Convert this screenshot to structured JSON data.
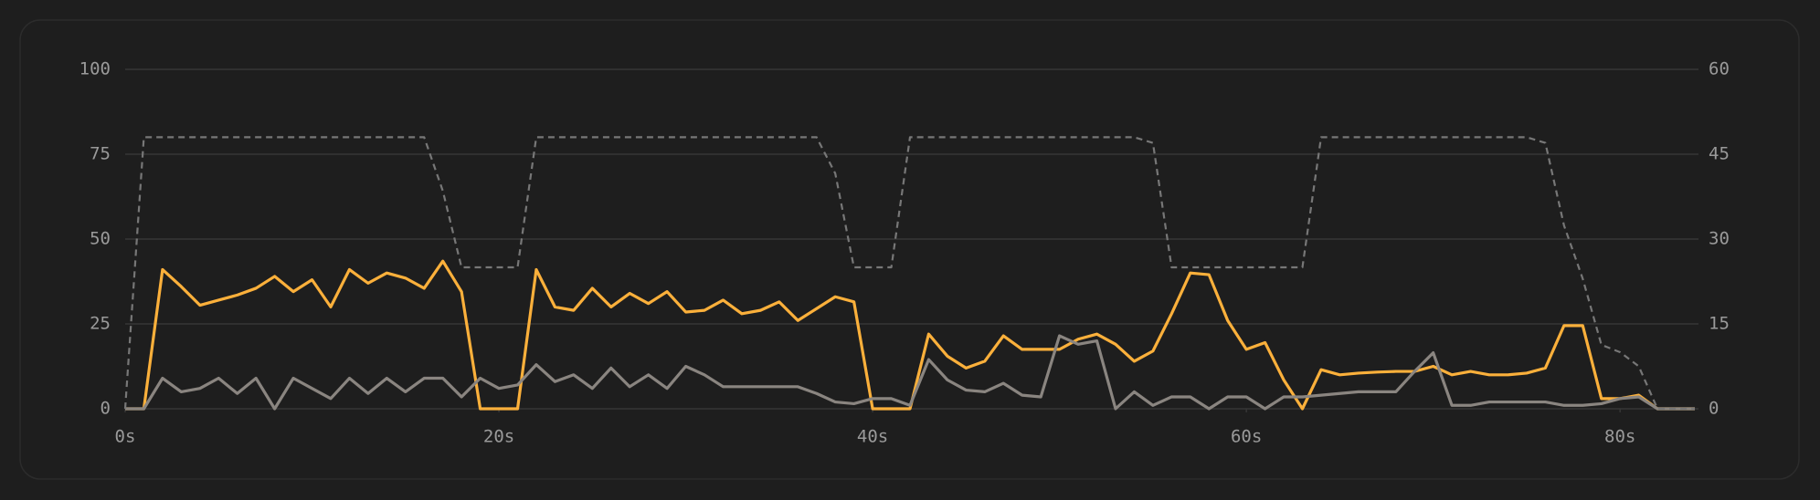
{
  "chart_data": {
    "type": "line",
    "x": [
      0,
      1,
      2,
      3,
      4,
      5,
      6,
      7,
      8,
      9,
      10,
      11,
      12,
      13,
      14,
      15,
      16,
      17,
      18,
      19,
      20,
      21,
      22,
      23,
      24,
      25,
      26,
      27,
      28,
      29,
      30,
      31,
      32,
      33,
      34,
      35,
      36,
      37,
      38,
      39,
      40,
      41,
      42,
      43,
      44,
      45,
      46,
      47,
      48,
      49,
      50,
      51,
      52,
      53,
      54,
      55,
      56,
      57,
      58,
      59,
      60,
      61,
      62,
      63,
      64,
      65,
      66,
      67,
      68,
      69,
      70,
      71,
      72,
      73,
      74,
      75,
      76,
      77,
      78,
      79,
      80,
      81,
      82,
      83,
      84
    ],
    "xlim": [
      0,
      84
    ],
    "xticks": [
      {
        "value": 0,
        "label": "0s"
      },
      {
        "value": 20,
        "label": "20s"
      },
      {
        "value": 40,
        "label": "40s"
      },
      {
        "value": 60,
        "label": "60s"
      },
      {
        "value": 80,
        "label": "80s"
      }
    ],
    "ylim": [
      0,
      100
    ],
    "yticks": [
      0,
      25,
      50,
      75,
      100
    ],
    "y2lim": [
      0,
      60
    ],
    "y2ticks": [
      0,
      15,
      30,
      45,
      60
    ],
    "grid": true,
    "series": [
      {
        "color": "#fbb03b",
        "axis": "y",
        "line_style": "solid",
        "values": [
          0,
          0,
          41,
          36,
          30.5,
          32,
          33.5,
          35.5,
          39,
          34.5,
          38,
          30,
          41,
          37,
          40,
          38.5,
          35.5,
          43.5,
          34.5,
          0,
          0,
          0,
          41,
          30,
          29,
          35.5,
          30,
          34,
          31,
          34.5,
          28.5,
          29,
          32,
          28,
          29,
          31.5,
          26,
          29.5,
          33,
          31.5,
          0,
          0,
          0,
          22,
          15.5,
          12,
          14,
          21.5,
          17.5,
          17.5,
          17.5,
          20.5,
          22,
          19,
          14,
          17,
          28,
          40,
          39.5,
          26,
          17.5,
          19.5,
          8.5,
          0,
          11.5,
          10,
          10.5,
          10.8,
          11,
          11,
          12.5,
          10,
          11,
          10,
          10,
          10.5,
          12,
          24.5,
          24.5,
          3,
          3,
          4,
          0,
          0,
          0
        ]
      },
      {
        "color": "#8a8580",
        "axis": "y",
        "line_style": "solid",
        "values": [
          0,
          0,
          9,
          5,
          6,
          9,
          4.5,
          9,
          0,
          9,
          6,
          3,
          9,
          4.5,
          9,
          5,
          9,
          9,
          3.5,
          9,
          6,
          7,
          13,
          8,
          10,
          6,
          12,
          6.5,
          10,
          6,
          12.5,
          10,
          6.5,
          6.5,
          6.5,
          6.5,
          6.5,
          4.5,
          2,
          1.5,
          3,
          3,
          1,
          14.5,
          8.5,
          5.5,
          5,
          7.5,
          4,
          3.5,
          21.5,
          19,
          20,
          0,
          5,
          1,
          3.5,
          3.5,
          0,
          3.5,
          3.5,
          0,
          3.5,
          3.5,
          4,
          4.5,
          5,
          5,
          5,
          11,
          16.5,
          1,
          1,
          2,
          2,
          2,
          2,
          1,
          1,
          1.5,
          3,
          3.5,
          0,
          0,
          0
        ]
      },
      {
        "color": "#777777",
        "axis": "y2",
        "line_style": "dashed",
        "values": [
          0,
          48,
          48,
          48,
          48,
          48,
          48,
          48,
          48,
          48,
          48,
          48,
          48,
          48,
          48,
          48,
          48,
          38.5,
          25,
          25,
          25,
          25,
          48,
          48,
          48,
          48,
          48,
          48,
          48,
          48,
          48,
          48,
          48,
          48,
          48,
          48,
          48,
          48,
          41.6,
          25,
          25,
          25,
          48,
          48,
          48,
          48,
          48,
          48,
          48,
          48,
          48,
          48,
          48,
          48,
          48,
          47,
          25,
          25,
          25,
          25,
          25,
          25,
          25,
          25,
          48,
          48,
          48,
          48,
          48,
          48,
          48,
          48,
          48,
          48,
          48,
          48,
          47,
          32.4,
          23,
          11.3,
          10,
          7.5,
          0,
          0,
          0
        ]
      }
    ]
  }
}
